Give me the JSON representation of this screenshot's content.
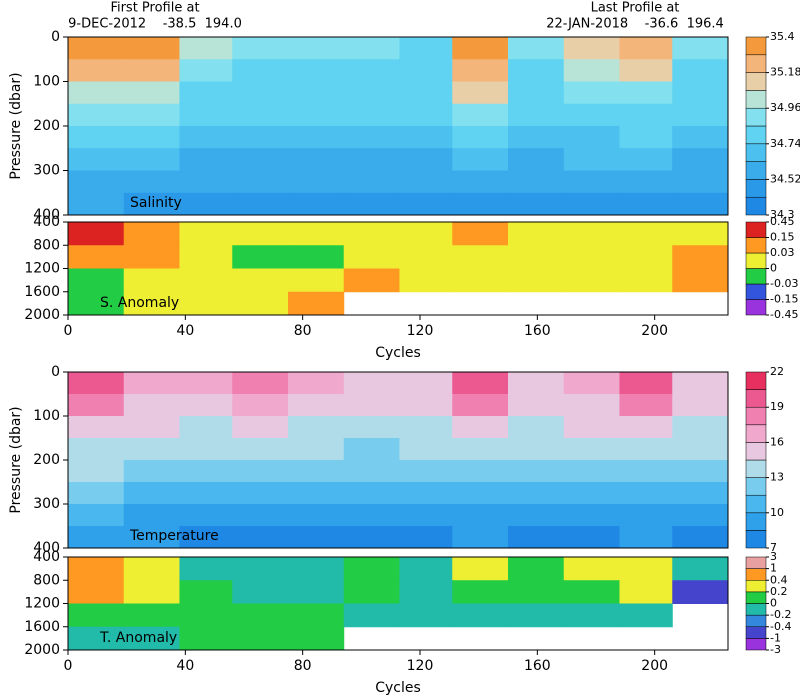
{
  "header": {
    "first_title": "First Profile at",
    "first_info": "9-DEC-2012    -38.5  194.0",
    "last_title": "Last Profile at",
    "last_info": "22-JAN-2018    -36.6  196.4"
  },
  "chart_data": [
    {
      "type": "heatmap",
      "label": "Salinity",
      "ylabel": "Pressure (dbar)",
      "xlim": [
        0,
        225
      ],
      "ylim": [
        0,
        400
      ],
      "yticks": [
        0,
        100,
        200,
        300,
        400
      ],
      "xbins": [
        0,
        19,
        38,
        56,
        75,
        94,
        113,
        131,
        150,
        169,
        188,
        206,
        225
      ],
      "ybins": [
        0,
        50,
        100,
        150,
        200,
        250,
        300,
        350,
        400
      ],
      "values": [
        [
          35.3,
          35.3,
          35.0,
          34.9,
          34.9,
          34.9,
          34.85,
          35.3,
          34.9,
          35.1,
          35.2,
          34.9
        ],
        [
          35.2,
          35.2,
          34.95,
          34.85,
          34.85,
          34.85,
          34.85,
          35.25,
          34.85,
          35.0,
          35.1,
          34.85
        ],
        [
          35.0,
          35.0,
          34.85,
          34.8,
          34.8,
          34.8,
          34.8,
          35.1,
          34.8,
          34.9,
          34.95,
          34.8
        ],
        [
          34.9,
          34.9,
          34.8,
          34.75,
          34.75,
          34.75,
          34.75,
          34.9,
          34.75,
          34.8,
          34.85,
          34.75
        ],
        [
          34.8,
          34.8,
          34.7,
          34.68,
          34.68,
          34.7,
          34.7,
          34.8,
          34.7,
          34.72,
          34.75,
          34.7
        ],
        [
          34.72,
          34.7,
          34.62,
          34.6,
          34.6,
          34.62,
          34.62,
          34.7,
          34.62,
          34.64,
          34.66,
          34.62
        ],
        [
          34.62,
          34.6,
          34.55,
          34.53,
          34.53,
          34.55,
          34.55,
          34.6,
          34.55,
          34.56,
          34.58,
          34.55
        ],
        [
          34.55,
          34.5,
          34.48,
          34.46,
          34.46,
          34.48,
          34.48,
          34.5,
          34.48,
          34.5,
          34.5,
          34.48
        ]
      ],
      "colorbar": {
        "levels": [
          34.3,
          34.41,
          34.52,
          34.63,
          34.74,
          34.85,
          34.96,
          35.07,
          35.18,
          35.29,
          35.4
        ],
        "colors": [
          "#1f88e5",
          "#2a9ae8",
          "#3aacec",
          "#4cc0ef",
          "#5fd3f1",
          "#82e0ef",
          "#b8e4d8",
          "#e8cfa8",
          "#f4b57a",
          "#f49a3c"
        ],
        "ticks": [
          34.3,
          34.52,
          34.74,
          34.96,
          35.18,
          35.4
        ]
      }
    },
    {
      "type": "heatmap",
      "label": "S. Anomaly",
      "xlabel": "Cycles",
      "xlim": [
        0,
        225
      ],
      "xticks": [
        0,
        40,
        80,
        120,
        160,
        200
      ],
      "ylim": [
        400,
        2000
      ],
      "yticks": [
        400,
        800,
        1200,
        1600,
        2000
      ],
      "xbins": [
        0,
        19,
        38,
        56,
        75,
        94,
        113,
        131,
        150,
        169,
        188,
        206,
        225
      ],
      "ybins": [
        400,
        800,
        1200,
        1600,
        2000
      ],
      "values": [
        [
          0.2,
          0.1,
          0.02,
          0.01,
          0.01,
          0.01,
          0.02,
          0.05,
          0.02,
          0.02,
          0.02,
          0.01
        ],
        [
          0.1,
          0.05,
          0.01,
          -0.01,
          -0.01,
          0.01,
          0.01,
          0.02,
          0.01,
          0.02,
          0.02,
          0.05
        ],
        [
          -0.02,
          0.01,
          0.02,
          0.01,
          0.02,
          0.04,
          0.02,
          0.02,
          0.01,
          0.02,
          0.02,
          0.1
        ],
        [
          -0.02,
          0.02,
          0.02,
          0.02,
          0.05,
          null,
          null,
          null,
          null,
          null,
          null,
          null
        ]
      ],
      "colorbar": {
        "levels": [
          -0.45,
          -0.15,
          -0.03,
          0,
          0.03,
          0.15,
          0.45
        ],
        "colors": [
          "#9933dd",
          "#3355dd",
          "#22cc44",
          "#eeee33",
          "#ff9922",
          "#dd2222"
        ],
        "ticks": [
          -0.45,
          -0.15,
          -0.03,
          0,
          0.03,
          0.15,
          0.45
        ]
      }
    },
    {
      "type": "heatmap",
      "label": "Temperature",
      "ylabel": "Pressure (dbar)",
      "xlim": [
        0,
        225
      ],
      "ylim": [
        0,
        400
      ],
      "yticks": [
        0,
        100,
        200,
        300,
        400
      ],
      "xbins": [
        0,
        19,
        38,
        56,
        75,
        94,
        113,
        131,
        150,
        169,
        188,
        206,
        225
      ],
      "ybins": [
        0,
        50,
        100,
        150,
        200,
        250,
        300,
        350,
        400
      ],
      "values": [
        [
          20,
          17,
          17,
          19,
          17,
          16,
          16,
          20,
          16,
          17,
          20,
          16
        ],
        [
          18,
          16,
          15.5,
          17,
          15.5,
          15,
          15,
          18,
          15,
          16,
          18,
          15
        ],
        [
          16,
          15,
          14.5,
          15.5,
          14.5,
          14,
          14,
          16,
          14,
          15,
          16,
          14
        ],
        [
          14.5,
          14,
          13.5,
          14,
          13.5,
          13,
          13.5,
          14.5,
          13.5,
          14,
          14.5,
          13.5
        ],
        [
          13.5,
          13,
          12.5,
          12.5,
          12.5,
          12,
          12.5,
          13,
          12.5,
          12.5,
          13,
          12.5
        ],
        [
          12,
          11.5,
          11,
          11,
          11,
          10.5,
          11,
          11.5,
          11,
          11,
          11.5,
          11
        ],
        [
          10.5,
          10,
          9.5,
          9.5,
          9.5,
          9.5,
          9.5,
          10,
          9.5,
          9.5,
          10,
          9.5
        ],
        [
          9.5,
          9,
          8.5,
          8.5,
          8.5,
          8.5,
          8.5,
          9,
          8.5,
          8.5,
          9,
          8.5
        ]
      ],
      "colorbar": {
        "levels": [
          7,
          8.5,
          10,
          11.5,
          13,
          14.5,
          16,
          17.5,
          19,
          20.5,
          22
        ],
        "colors": [
          "#1f88e5",
          "#2fa0ea",
          "#4ab8ee",
          "#78cdee",
          "#b0dcea",
          "#e8c8e0",
          "#f0a8cc",
          "#f080b0",
          "#ec5890",
          "#e83060"
        ],
        "ticks": [
          7,
          10,
          13,
          16,
          19,
          22
        ]
      }
    },
    {
      "type": "heatmap",
      "label": "T. Anomaly",
      "xlabel": "Cycles",
      "xlim": [
        0,
        225
      ],
      "xticks": [
        0,
        40,
        80,
        120,
        160,
        200
      ],
      "ylim": [
        400,
        2000
      ],
      "yticks": [
        400,
        800,
        1200,
        1600,
        2000
      ],
      "xbins": [
        0,
        19,
        38,
        56,
        75,
        94,
        113,
        131,
        150,
        169,
        188,
        206,
        225
      ],
      "ybins": [
        400,
        800,
        1200,
        1600,
        2000
      ],
      "values": [
        [
          0.5,
          0.4,
          0,
          -0.1,
          0,
          0.1,
          0,
          0.3,
          0.2,
          0.3,
          0.3,
          -0.1
        ],
        [
          0.6,
          0.3,
          0.1,
          0,
          -0.1,
          0.1,
          -0.1,
          0.2,
          0.1,
          0.2,
          0.3,
          -0.5
        ],
        [
          0.2,
          0.1,
          0.2,
          0.1,
          0.1,
          0,
          -0.1,
          0,
          0,
          0,
          0,
          null
        ],
        [
          -0.1,
          0,
          0.1,
          0.1,
          0.2,
          null,
          null,
          null,
          null,
          null,
          null,
          null
        ]
      ],
      "colorbar": {
        "levels": [
          -3,
          -1,
          -0.4,
          -0.2,
          0,
          0.2,
          0.4,
          1,
          3
        ],
        "colors": [
          "#9933dd",
          "#4444cc",
          "#3388dd",
          "#22bbaa",
          "#22cc44",
          "#eeee33",
          "#ff9922",
          "#e8a0a0"
        ],
        "ticks": [
          -3,
          -1,
          -0.4,
          -0.2,
          0,
          0.2,
          0.4,
          1,
          3
        ]
      }
    }
  ]
}
